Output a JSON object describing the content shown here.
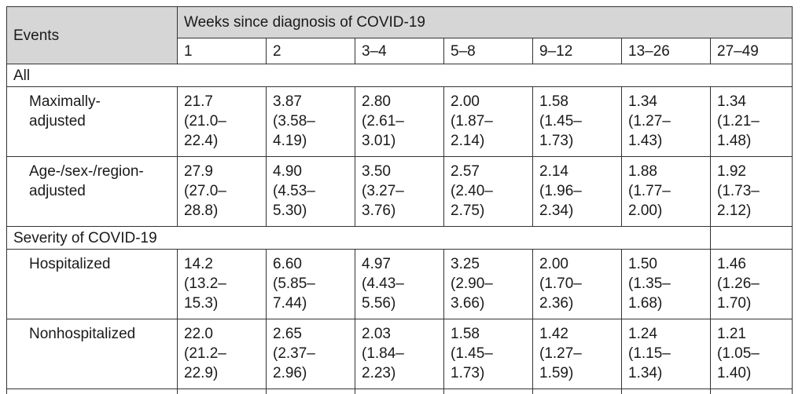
{
  "header": {
    "events_label": "Events",
    "weeks_label": "Weeks since diagnosis of COVID-19",
    "columns": [
      "1",
      "2",
      "3–4",
      "5–8",
      "9–12",
      "13–26",
      "27–49"
    ]
  },
  "sections": [
    {
      "title": "All",
      "rows": [
        {
          "label_lines": [
            "Maximally-",
            "adjusted"
          ],
          "cells": [
            [
              "21.7",
              "(21.0–",
              "22.4)"
            ],
            [
              "3.87",
              "(3.58–",
              "4.19)"
            ],
            [
              "2.80",
              "(2.61–",
              "3.01)"
            ],
            [
              "2.00",
              "(1.87–",
              "2.14)"
            ],
            [
              "1.58",
              "(1.45–",
              "1.73)"
            ],
            [
              "1.34",
              "(1.27–",
              "1.43)"
            ],
            [
              "1.34",
              "(1.21–",
              "1.48)"
            ]
          ]
        },
        {
          "label_lines": [
            "Age-/sex-/region-",
            "adjusted"
          ],
          "cells": [
            [
              "27.9",
              "(27.0–",
              "28.8)"
            ],
            [
              "4.90",
              "(4.53–",
              "5.30)"
            ],
            [
              "3.50",
              "(3.27–",
              "3.76)"
            ],
            [
              "2.57",
              "(2.40–",
              "2.75)"
            ],
            [
              "2.14",
              "(1.96–",
              "2.34)"
            ],
            [
              "1.88",
              "(1.77–",
              "2.00)"
            ],
            [
              "1.92",
              "(1.73–",
              "2.12)"
            ]
          ]
        }
      ]
    },
    {
      "title": "Severity of COVID-19",
      "rows": [
        {
          "label_lines": [
            "Hospitalized"
          ],
          "cells": [
            [
              "14.2",
              "(13.2–",
              "15.3)"
            ],
            [
              "6.60",
              "(5.85–",
              "7.44)"
            ],
            [
              "4.97",
              "(4.43–",
              "5.56)"
            ],
            [
              "3.25",
              "(2.90–",
              "3.66)"
            ],
            [
              "2.00",
              "(1.70–",
              "2.36)"
            ],
            [
              "1.50",
              "(1.35–",
              "1.68)"
            ],
            [
              "1.46",
              "(1.26–",
              "1.70)"
            ]
          ]
        },
        {
          "label_lines": [
            "Nonhospitalized"
          ],
          "cells": [
            [
              "22.0",
              "(21.2–",
              "22.9)"
            ],
            [
              "2.65",
              "(2.37–",
              "2.96)"
            ],
            [
              "2.03",
              "(1.84–",
              "2.23)"
            ],
            [
              "1.58",
              "(1.45–",
              "1.73)"
            ],
            [
              "1.42",
              "(1.27–",
              "1.59)"
            ],
            [
              "1.24",
              "(1.15–",
              "1.34)"
            ],
            [
              "1.21",
              "(1.05–",
              "1.40)"
            ]
          ]
        }
      ]
    }
  ]
}
